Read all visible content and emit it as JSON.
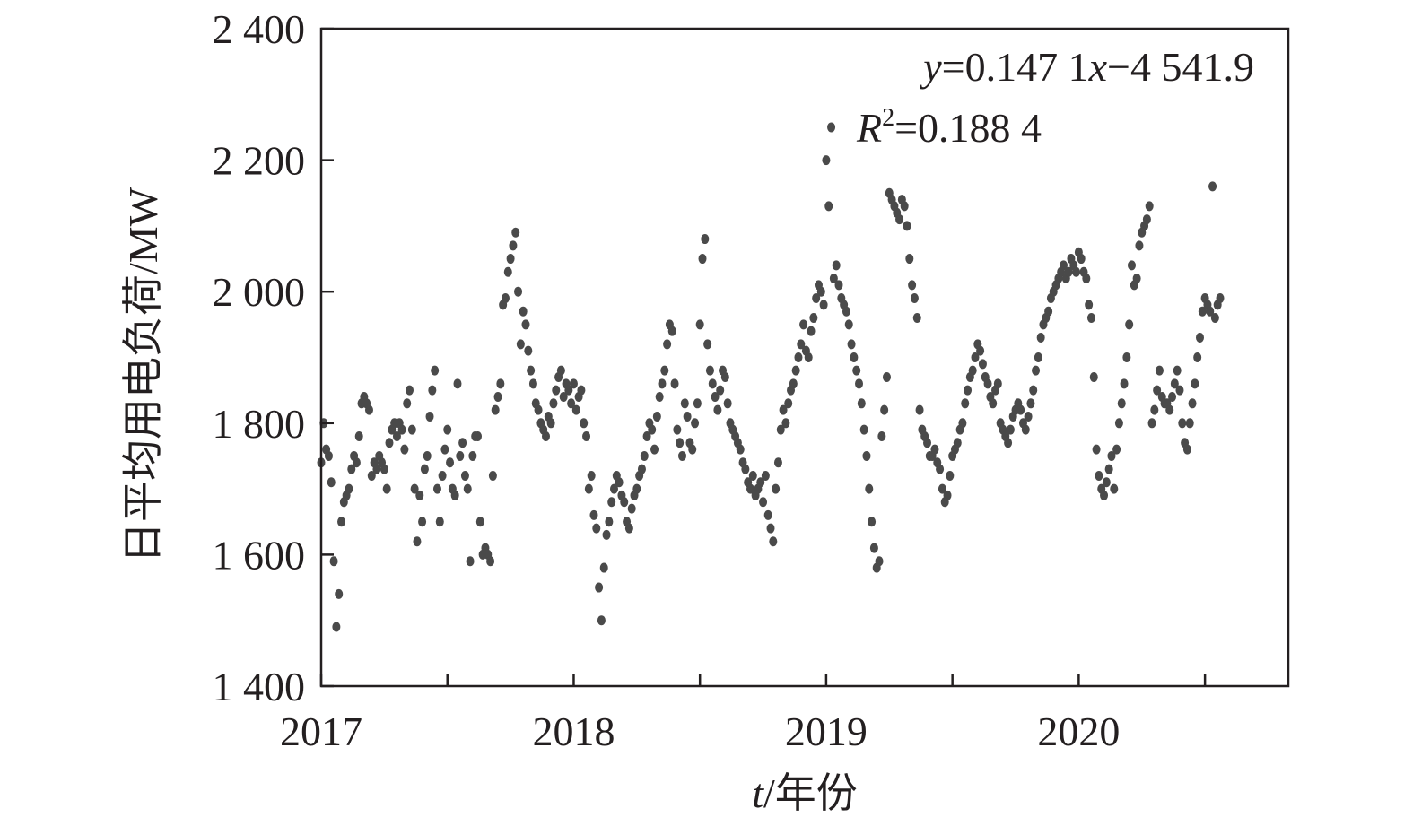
{
  "chart_data": {
    "type": "scatter",
    "title": "",
    "xlabel": "t/年份",
    "ylabel": "日平均用电负荷/MW",
    "xlim": [
      2017.0,
      2020.83
    ],
    "ylim": [
      1400,
      2400
    ],
    "x_ticks": [
      2017,
      2018,
      2019,
      2020
    ],
    "x_tick_labels": [
      "2017",
      "2018",
      "2019",
      "2020"
    ],
    "y_ticks": [
      1400,
      1600,
      1800,
      2000,
      2200,
      2400
    ],
    "y_tick_labels": [
      "1 400",
      "1 600",
      "1 800",
      "2 000",
      "2 200",
      "2 400"
    ],
    "annotation": {
      "equation": "y=0.147 1x−4 541.9",
      "r_squared": "R²=0.188 4"
    },
    "point_color": "#4a4a4a",
    "series": [
      {
        "x": [
          2017.0,
          2017.01,
          2017.02,
          2017.03,
          2017.04,
          2017.05,
          2017.06,
          2017.07,
          2017.08,
          2017.09,
          2017.1,
          2017.11,
          2017.12,
          2017.13,
          2017.14,
          2017.15,
          2017.16,
          2017.17,
          2017.18,
          2017.19,
          2017.2,
          2017.21,
          2017.22,
          2017.23,
          2017.24,
          2017.25,
          2017.26,
          2017.27,
          2017.28,
          2017.29,
          2017.3,
          2017.31,
          2017.32,
          2017.33,
          2017.34,
          2017.35,
          2017.36,
          2017.37,
          2017.38,
          2017.39,
          2017.4,
          2017.41,
          2017.42,
          2017.43,
          2017.44,
          2017.45,
          2017.46,
          2017.47,
          2017.48,
          2017.49,
          2017.5,
          2017.51,
          2017.52,
          2017.53,
          2017.54,
          2017.55,
          2017.56,
          2017.57,
          2017.58,
          2017.59,
          2017.6,
          2017.61,
          2017.62,
          2017.63,
          2017.64,
          2017.65,
          2017.66,
          2017.67,
          2017.68,
          2017.69,
          2017.7,
          2017.71,
          2017.72,
          2017.73,
          2017.74,
          2017.75,
          2017.76,
          2017.77,
          2017.78,
          2017.79,
          2017.8,
          2017.81,
          2017.82,
          2017.83,
          2017.84,
          2017.85,
          2017.86,
          2017.87,
          2017.88,
          2017.89,
          2017.9,
          2017.91,
          2017.92,
          2017.93,
          2017.94,
          2017.95,
          2017.96,
          2017.97,
          2017.98,
          2017.99,
          2018.0,
          2018.01,
          2018.02,
          2018.03,
          2018.04,
          2018.05,
          2018.06,
          2018.07,
          2018.08,
          2018.09,
          2018.1,
          2018.11,
          2018.12,
          2018.13,
          2018.14,
          2018.15,
          2018.16,
          2018.17,
          2018.18,
          2018.19,
          2018.2,
          2018.21,
          2018.22,
          2018.23,
          2018.24,
          2018.25,
          2018.26,
          2018.27,
          2018.28,
          2018.29,
          2018.3,
          2018.31,
          2018.32,
          2018.33,
          2018.34,
          2018.35,
          2018.36,
          2018.37,
          2018.38,
          2018.39,
          2018.4,
          2018.41,
          2018.42,
          2018.43,
          2018.44,
          2018.45,
          2018.46,
          2018.47,
          2018.48,
          2018.49,
          2018.5,
          2018.51,
          2018.52,
          2018.53,
          2018.54,
          2018.55,
          2018.56,
          2018.57,
          2018.58,
          2018.59,
          2018.6,
          2018.61,
          2018.62,
          2018.63,
          2018.64,
          2018.65,
          2018.66,
          2018.67,
          2018.68,
          2018.69,
          2018.7,
          2018.71,
          2018.72,
          2018.73,
          2018.74,
          2018.75,
          2018.76,
          2018.77,
          2018.78,
          2018.79,
          2018.8,
          2018.81,
          2018.82,
          2018.83,
          2018.84,
          2018.85,
          2018.86,
          2018.87,
          2018.88,
          2018.89,
          2018.9,
          2018.91,
          2018.92,
          2018.93,
          2018.94,
          2018.95,
          2018.96,
          2018.97,
          2018.98,
          2018.99,
          2019.0,
          2019.01,
          2019.02,
          2019.03,
          2019.04,
          2019.05,
          2019.06,
          2019.07,
          2019.08,
          2019.09,
          2019.1,
          2019.11,
          2019.12,
          2019.13,
          2019.14,
          2019.15,
          2019.16,
          2019.17,
          2019.18,
          2019.19,
          2019.2,
          2019.21,
          2019.22,
          2019.23,
          2019.24,
          2019.25,
          2019.26,
          2019.27,
          2019.28,
          2019.29,
          2019.3,
          2019.31,
          2019.32,
          2019.33,
          2019.34,
          2019.35,
          2019.36,
          2019.37,
          2019.38,
          2019.39,
          2019.4,
          2019.41,
          2019.42,
          2019.43,
          2019.44,
          2019.45,
          2019.46,
          2019.47,
          2019.48,
          2019.49,
          2019.5,
          2019.51,
          2019.52,
          2019.53,
          2019.54,
          2019.55,
          2019.56,
          2019.57,
          2019.58,
          2019.59,
          2019.6,
          2019.61,
          2019.62,
          2019.63,
          2019.64,
          2019.65,
          2019.66,
          2019.67,
          2019.68,
          2019.69,
          2019.7,
          2019.71,
          2019.72,
          2019.73,
          2019.74,
          2019.75,
          2019.76,
          2019.77,
          2019.78,
          2019.79,
          2019.8,
          2019.81,
          2019.82,
          2019.83,
          2019.84,
          2019.85,
          2019.86,
          2019.87,
          2019.88,
          2019.89,
          2019.9,
          2019.91,
          2019.92,
          2019.93,
          2019.94,
          2019.95,
          2019.96,
          2019.97,
          2019.98,
          2019.99,
          2020.0,
          2020.01,
          2020.02,
          2020.03,
          2020.04,
          2020.05,
          2020.06,
          2020.07,
          2020.08,
          2020.09,
          2020.1,
          2020.11,
          2020.12,
          2020.13,
          2020.14,
          2020.15,
          2020.16,
          2020.17,
          2020.18,
          2020.19,
          2020.2,
          2020.21,
          2020.22,
          2020.23,
          2020.24,
          2020.25,
          2020.26,
          2020.27,
          2020.28,
          2020.29,
          2020.3,
          2020.31,
          2020.32,
          2020.33,
          2020.34,
          2020.35,
          2020.36,
          2020.37,
          2020.38,
          2020.39,
          2020.4,
          2020.41,
          2020.42,
          2020.43,
          2020.44,
          2020.45,
          2020.46,
          2020.47,
          2020.48,
          2020.49,
          2020.5,
          2020.51,
          2020.52,
          2020.53,
          2020.54,
          2020.55,
          2020.56
        ],
        "y": [
          1740,
          1800,
          1760,
          1750,
          1710,
          1590,
          1490,
          1540,
          1650,
          1680,
          1690,
          1700,
          1730,
          1750,
          1740,
          1780,
          1830,
          1840,
          1830,
          1820,
          1720,
          1740,
          1730,
          1750,
          1740,
          1730,
          1700,
          1770,
          1790,
          1800,
          1780,
          1800,
          1790,
          1760,
          1830,
          1850,
          1790,
          1700,
          1620,
          1690,
          1650,
          1730,
          1750,
          1810,
          1850,
          1880,
          1700,
          1650,
          1720,
          1760,
          1790,
          1740,
          1700,
          1690,
          1860,
          1750,
          1770,
          1720,
          1700,
          1590,
          1750,
          1780,
          1780,
          1650,
          1600,
          1610,
          1600,
          1590,
          1720,
          1820,
          1840,
          1860,
          1980,
          1990,
          2030,
          2050,
          2070,
          2090,
          2000,
          1920,
          1970,
          1950,
          1910,
          1880,
          1860,
          1830,
          1820,
          1800,
          1790,
          1780,
          1810,
          1800,
          1830,
          1850,
          1870,
          1880,
          1840,
          1860,
          1850,
          1830,
          1860,
          1820,
          1840,
          1850,
          1800,
          1780,
          1700,
          1720,
          1660,
          1640,
          1550,
          1500,
          1580,
          1630,
          1650,
          1680,
          1700,
          1720,
          1710,
          1690,
          1680,
          1650,
          1640,
          1670,
          1690,
          1700,
          1720,
          1730,
          1750,
          1780,
          1800,
          1790,
          1760,
          1810,
          1840,
          1860,
          1880,
          1920,
          1950,
          1940,
          1860,
          1790,
          1770,
          1750,
          1830,
          1810,
          1770,
          1760,
          1800,
          1830,
          1950,
          2050,
          2080,
          1920,
          1880,
          1860,
          1840,
          1820,
          1850,
          1880,
          1870,
          1830,
          1800,
          1790,
          1780,
          1770,
          1760,
          1740,
          1730,
          1710,
          1700,
          1720,
          1690,
          1700,
          1710,
          1680,
          1720,
          1660,
          1640,
          1620,
          1700,
          1740,
          1790,
          1820,
          1800,
          1830,
          1850,
          1860,
          1880,
          1900,
          1920,
          1950,
          1910,
          1900,
          1940,
          1960,
          1990,
          2010,
          2000,
          1980,
          2200,
          2130,
          2250,
          2020,
          2040,
          2010,
          1990,
          1980,
          1970,
          1950,
          1920,
          1900,
          1880,
          1860,
          1830,
          1790,
          1750,
          1700,
          1650,
          1610,
          1580,
          1590,
          1780,
          1820,
          1870,
          2150,
          2140,
          2130,
          2120,
          2110,
          2140,
          2130,
          2100,
          2050,
          2010,
          1990,
          1960,
          1820,
          1790,
          1780,
          1770,
          1750,
          1750,
          1760,
          1740,
          1730,
          1700,
          1680,
          1690,
          1720,
          1750,
          1760,
          1770,
          1790,
          1800,
          1830,
          1850,
          1870,
          1880,
          1900,
          1920,
          1910,
          1890,
          1870,
          1860,
          1840,
          1830,
          1850,
          1860,
          1800,
          1790,
          1780,
          1770,
          1790,
          1810,
          1820,
          1830,
          1820,
          1800,
          1790,
          1810,
          1830,
          1850,
          1880,
          1900,
          1930,
          1950,
          1960,
          1970,
          1990,
          2000,
          2010,
          2020,
          2030,
          2040,
          2020,
          2030,
          2050,
          2040,
          2030,
          2060,
          2050,
          2030,
          2020,
          1980,
          1960,
          1870,
          1760,
          1720,
          1700,
          1690,
          1710,
          1730,
          1750,
          1700,
          1760,
          1800,
          1830,
          1860,
          1900,
          1950,
          2040,
          2010,
          2020,
          2070,
          2090,
          2100,
          2110,
          2130,
          1800,
          1820,
          1850,
          1880,
          1840,
          1830,
          1830,
          1820,
          1840,
          1860,
          1880,
          1850,
          1800,
          1770,
          1760,
          1800,
          1830,
          1860,
          1900,
          1930,
          1970,
          1990,
          1980,
          1970,
          2160,
          1960,
          1980,
          1990
        ]
      }
    ]
  }
}
